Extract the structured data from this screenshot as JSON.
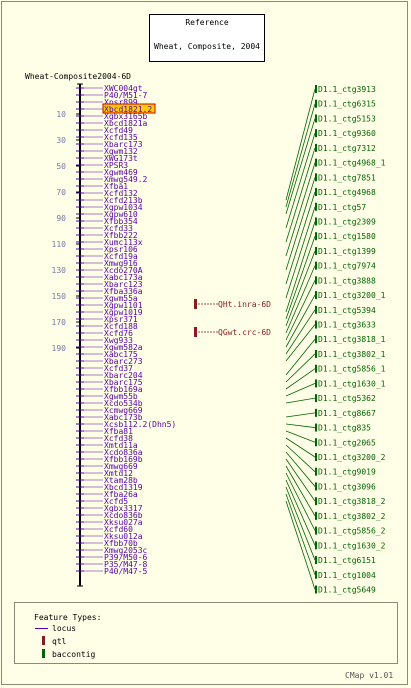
{
  "reference": {
    "title": "Reference",
    "subtitle": "Wheat, Composite, 2004"
  },
  "map": {
    "name": "Wheat-Composite2004-6D",
    "ticks": [
      "10",
      "30",
      "50",
      "70",
      "90",
      "110",
      "130",
      "150",
      "170",
      "190"
    ],
    "loci": [
      "XWC004gt",
      "P40/M51-7",
      "Xpsr899",
      "Xbcd1821.2",
      "Xgbx3165b",
      "Xbcd1821a",
      "Xcfd49",
      "Xcfd135",
      "Xbarc173",
      "Xgwm132",
      "XWG173t",
      "XPSR3",
      "Xgwm469",
      "Xmwg549.2",
      "Xfba1",
      "Xcfd132",
      "Xcfd213b",
      "Xgpw1034",
      "Xgpw610",
      "Xfbb354",
      "Xcfd33",
      "Xfbb222",
      "Xumc113x",
      "Xpsr106",
      "Xcfd19a",
      "Xmwg916",
      "Xcdo270A",
      "Xabc173a",
      "Xbarc123",
      "Xfba336a",
      "Xgwm55a",
      "Xgpw1101",
      "Xgpw1019",
      "Xpsr371",
      "Xcfd188",
      "Xcfd76",
      "Xwg933",
      "Xgwm582a",
      "Xabc175",
      "Xbarc273",
      "Xcfd37",
      "Xbarc204",
      "Xbarc175",
      "Xfbb169a",
      "Xgwm55b",
      "Xcdo534b",
      "Xcmwg669",
      "Xabc173b",
      "Xcsb112.2(Dhn5)",
      "Xfba81",
      "Xcfd38",
      "Xmtd11a",
      "Xcdo836a",
      "Xfbb169b",
      "Xmwg669",
      "Xmtd12",
      "Xtam28b",
      "Xbcd1319",
      "Xfba26a",
      "Xcfd5",
      "Xgbx3317",
      "Xcdo836b",
      "Xksu027a",
      "Xcfd60",
      "Xksu012a",
      "Xfbb70b",
      "Xmwg2053c",
      "P39/M50-6",
      "P35/M47-8",
      "P40/M47-5"
    ],
    "highlight_locus": "Xbcd1821.2"
  },
  "qtls": [
    "QHt.inra-6D",
    "QGwt.crc-6D"
  ],
  "contigs": [
    "D1.1_ctg3913",
    "D1.1_ctg6315",
    "D1.1_ctg5153",
    "D1.1_ctg9360",
    "D1.1_ctg7312",
    "D1.1_ctg4968_1",
    "D1.1_ctg7851",
    "D1.1_ctg4968",
    "D1.1_ctg57",
    "D1.1_ctg2309",
    "D1.1_ctg1580",
    "D1.1_ctg1399",
    "D1.1_ctg7974",
    "D1.1_ctg3888",
    "D1.1_ctg3200_1",
    "D1.1_ctg5394",
    "D1.1_ctg3633",
    "D1.1_ctg3818_1",
    "D1.1_ctg3802_1",
    "D1.1_ctg5856_1",
    "D1.1_ctg1630_1",
    "D1.1_ctg5362",
    "D1.1_ctg8667",
    "D1.1_ctg835",
    "D1.1_ctg2065",
    "D1.1_ctg3200_2",
    "D1.1_ctg9019",
    "D1.1_ctg3096",
    "D1.1_ctg3818_2",
    "D1.1_ctg3802_2",
    "D1.1_ctg5856_2",
    "D1.1_ctg1630_2",
    "D1.1_ctg6151",
    "D1.1_ctg1004",
    "D1.1_ctg5649"
  ],
  "legend": {
    "title": "Feature Types:",
    "locus": "locus",
    "qtl": "qtl",
    "baccontig": "baccontig"
  },
  "footer": "CMap v1.01",
  "colors": {
    "background": "#ffffe8",
    "locus": "#5500aa",
    "contig": "#006400",
    "qtl": "#8b1a1a",
    "highlight": "#ffcc00",
    "tick_label": "#7777aa"
  }
}
